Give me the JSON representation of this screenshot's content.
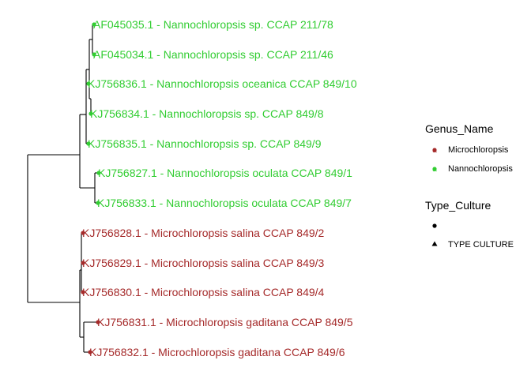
{
  "colors": {
    "Microchloropsis": "#a52a2a",
    "Nannochloropsis": "#32cd32",
    "branch": "#000000"
  },
  "tips": [
    {
      "label": "AF045035.1 - Nannochloropsis sp. CCAP 211/78",
      "genus": "Nannochloropsis",
      "marker": "circle"
    },
    {
      "label": "AF045034.1 - Nannochloropsis sp. CCAP 211/46",
      "genus": "Nannochloropsis",
      "marker": "circle"
    },
    {
      "label": "KJ756836.1 - Nannochloropsis oceanica CCAP 849/10",
      "genus": "Nannochloropsis",
      "marker": "circle"
    },
    {
      "label": "KJ756834.1 - Nannochloropsis sp. CCAP 849/8",
      "genus": "Nannochloropsis",
      "marker": "circle"
    },
    {
      "label": "KJ756835.1 - Nannochloropsis sp. CCAP 849/9",
      "genus": "Nannochloropsis",
      "marker": "circle"
    },
    {
      "label": "KJ756827.1 - Nannochloropsis oculata CCAP 849/1",
      "genus": "Nannochloropsis",
      "marker": "circle"
    },
    {
      "label": "KJ756833.1 - Nannochloropsis oculata CCAP 849/7",
      "genus": "Nannochloropsis",
      "marker": "circle"
    },
    {
      "label": "KJ756828.1 - Microchloropsis salina CCAP 849/2",
      "genus": "Microchloropsis",
      "marker": "circle"
    },
    {
      "label": "KJ756829.1 - Microchloropsis salina CCAP 849/3",
      "genus": "Microchloropsis",
      "marker": "circle"
    },
    {
      "label": "KJ756830.1 - Microchloropsis salina CCAP 849/4",
      "genus": "Microchloropsis",
      "marker": "circle"
    },
    {
      "label": "KJ756831.1 - Microchloropsis gaditana CCAP 849/5",
      "genus": "Microchloropsis",
      "marker": "circle"
    },
    {
      "label": "KJ756832.1 - Microchloropsis gaditana CCAP 849/6",
      "genus": "Microchloropsis",
      "marker": "circle"
    }
  ],
  "legend": {
    "genus": {
      "title": "Genus_Name",
      "items": [
        {
          "label": "Microchloropsis",
          "key_text": "a"
        },
        {
          "label": "Nannochloropsis",
          "key_text": "a"
        }
      ]
    },
    "type_culture": {
      "title": "Type_Culture",
      "items": [
        {
          "label": "",
          "marker": "circle"
        },
        {
          "label": "TYPE CULTURE",
          "marker": "triangle"
        }
      ]
    }
  }
}
